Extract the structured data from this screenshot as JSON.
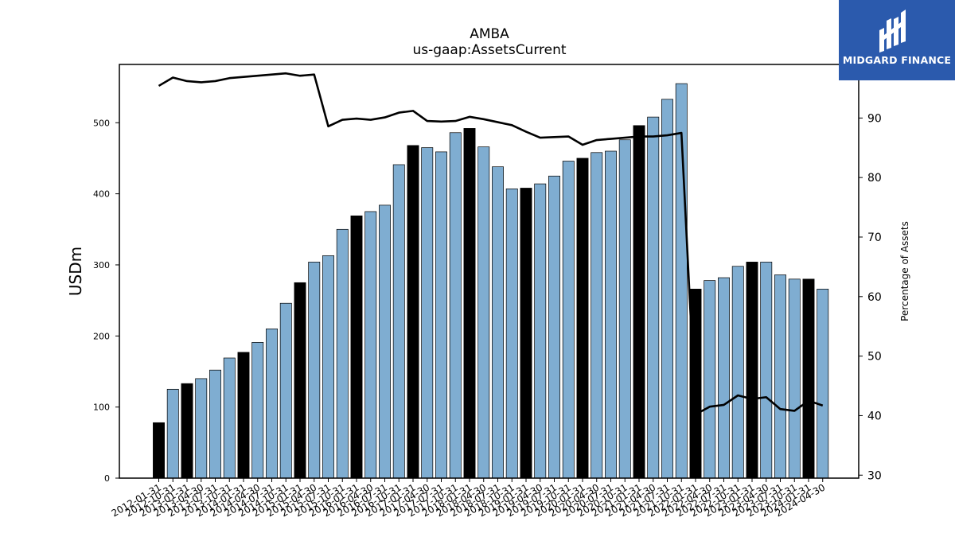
{
  "chart_data": {
    "type": "bar",
    "title": "AMBA",
    "subtitle": "us-gaap:AssetsCurrent",
    "ylabel": "USDm",
    "y2label": "Percentage of Assets",
    "ylim": [
      0,
      582
    ],
    "y2lim": [
      29.5,
      99
    ],
    "yticks": [
      0,
      100,
      200,
      300,
      400,
      500
    ],
    "y2ticks": [
      30,
      40,
      50,
      60,
      70,
      80,
      90
    ],
    "bar_colors": {
      "annual": "#000000",
      "quarter": "#7fadd1"
    },
    "line_color": "#000000",
    "categories": [
      "2012-01-31",
      "2012-10-31",
      "2013-01-31",
      "2013-04-30",
      "2013-07-31",
      "2013-10-31",
      "2014-01-31",
      "2014-04-30",
      "2014-07-31",
      "2014-10-31",
      "2015-01-31",
      "2015-04-30",
      "2015-07-31",
      "2015-10-31",
      "2016-01-31",
      "2016-04-30",
      "2016-07-31",
      "2016-10-31",
      "2017-01-31",
      "2017-04-30",
      "2017-07-31",
      "2017-10-31",
      "2018-01-31",
      "2018-04-30",
      "2018-07-31",
      "2018-10-31",
      "2019-01-31",
      "2019-04-30",
      "2019-07-31",
      "2019-10-31",
      "2020-01-31",
      "2020-04-30",
      "2020-07-31",
      "2020-10-31",
      "2021-01-31",
      "2021-04-30",
      "2021-07-31",
      "2021-10-31",
      "2022-01-31",
      "2022-04-30",
      "2022-07-31",
      "2022-10-31",
      "2023-01-31",
      "2023-04-30",
      "2023-07-31",
      "2023-10-31",
      "2024-01-31",
      "2024-04-30"
    ],
    "series": [
      {
        "kind": "bar",
        "values": [
          78,
          125,
          133,
          140,
          152,
          169,
          177,
          191,
          210,
          246,
          275,
          304,
          313,
          350,
          369,
          375,
          384,
          441,
          468,
          465,
          459,
          486,
          492,
          466,
          438,
          407,
          408,
          414,
          425,
          446,
          450,
          458,
          460,
          476,
          496,
          508,
          533,
          555,
          266,
          278,
          282,
          298,
          304,
          304,
          286,
          280,
          280,
          266
        ],
        "annual": [
          true,
          false,
          true,
          false,
          false,
          false,
          true,
          false,
          false,
          false,
          true,
          false,
          false,
          false,
          true,
          false,
          false,
          false,
          true,
          false,
          false,
          false,
          true,
          false,
          false,
          false,
          true,
          false,
          false,
          false,
          true,
          false,
          false,
          false,
          true,
          false,
          false,
          false,
          true,
          false,
          false,
          false,
          true,
          false,
          false,
          false,
          true,
          false
        ]
      },
      {
        "kind": "line",
        "axis": "right",
        "values": [
          95.4,
          96.8,
          96.2,
          96.0,
          96.2,
          96.7,
          96.9,
          97.1,
          97.3,
          97.5,
          97.1,
          97.3,
          88.6,
          89.7,
          89.9,
          89.7,
          90.1,
          90.9,
          91.2,
          89.5,
          89.4,
          89.5,
          90.2,
          89.8,
          89.3,
          88.8,
          87.7,
          86.7,
          86.8,
          86.9,
          85.5,
          86.3,
          86.5,
          86.7,
          86.9,
          86.9,
          87.1,
          87.5,
          40.2,
          41.5,
          41.8,
          43.4,
          42.8,
          43.1,
          41.1,
          40.8,
          42.5,
          41.7
        ]
      }
    ]
  },
  "logo": {
    "text": "MIDGARD FINANCE",
    "icon": "midgard-logo-icon"
  }
}
